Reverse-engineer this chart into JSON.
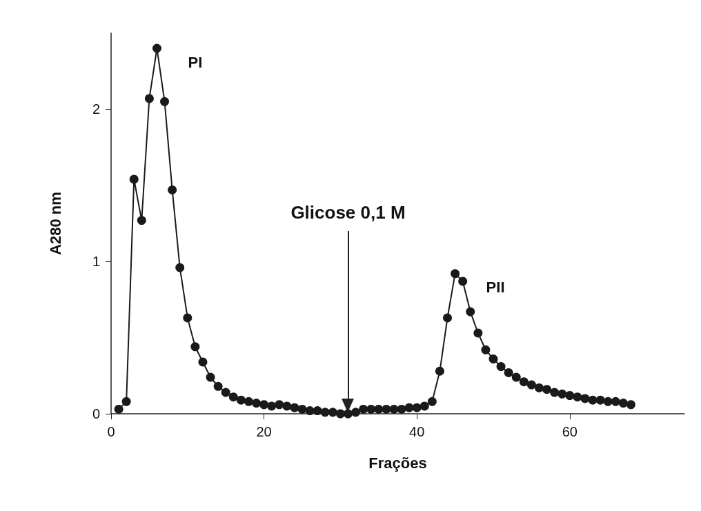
{
  "chart_data": {
    "type": "line",
    "xlabel": "Frações",
    "ylabel": "A280 nm",
    "x": [
      1,
      2,
      3,
      4,
      5,
      6,
      7,
      8,
      9,
      10,
      11,
      12,
      13,
      14,
      15,
      16,
      17,
      18,
      19,
      20,
      21,
      22,
      23,
      24,
      25,
      26,
      27,
      28,
      29,
      30,
      31,
      32,
      33,
      34,
      35,
      36,
      37,
      38,
      39,
      40,
      41,
      42,
      43,
      44,
      45,
      46,
      47,
      48,
      49,
      50,
      51,
      52,
      53,
      54,
      55,
      56,
      57,
      58,
      59,
      60,
      61,
      62,
      63,
      64,
      65,
      66,
      67,
      68
    ],
    "series": [
      {
        "color": "#1a1a1a",
        "values": [
          0.03,
          0.08,
          1.54,
          1.27,
          2.07,
          2.4,
          2.05,
          1.47,
          0.96,
          0.63,
          0.44,
          0.34,
          0.24,
          0.18,
          0.14,
          0.11,
          0.09,
          0.08,
          0.07,
          0.06,
          0.05,
          0.06,
          0.05,
          0.04,
          0.03,
          0.02,
          0.02,
          0.01,
          0.01,
          0,
          0,
          0.01,
          0.03,
          0.03,
          0.03,
          0.03,
          0.03,
          0.03,
          0.04,
          0.04,
          0.05,
          0.08,
          0.28,
          0.63,
          0.92,
          0.87,
          0.67,
          0.53,
          0.42,
          0.36,
          0.31,
          0.27,
          0.24,
          0.21,
          0.19,
          0.17,
          0.16,
          0.14,
          0.13,
          0.12,
          0.11,
          0.1,
          0.09,
          0.09,
          0.08,
          0.08,
          0.07,
          0.06
        ]
      }
    ],
    "xlim": [
      0,
      75
    ],
    "xticks": [
      0,
      20,
      40,
      60
    ],
    "ylim": [
      0,
      2.5
    ],
    "yticks": [
      0,
      1,
      2
    ],
    "marker": "circle",
    "line_style": "solid",
    "grid": false,
    "annotations": [
      {
        "text": "PI",
        "x": 6,
        "y": 2.4
      },
      {
        "text": "PII",
        "x": 45,
        "y": 0.92
      }
    ],
    "ref_lines": [
      {
        "axis": "x",
        "value": 31,
        "label": "Glicose 0,1 M",
        "color": "#222222"
      }
    ]
  }
}
